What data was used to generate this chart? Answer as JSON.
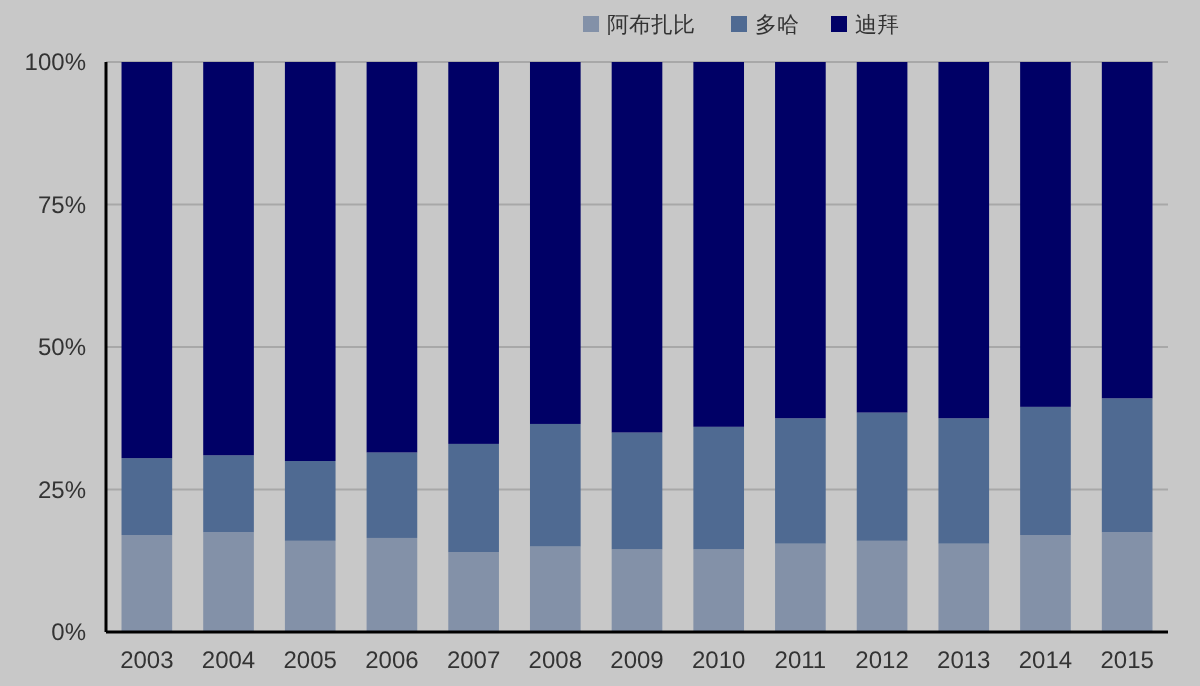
{
  "chart_data": {
    "type": "bar",
    "stacked": true,
    "categories": [
      "2003",
      "2004",
      "2005",
      "2006",
      "2007",
      "2008",
      "2009",
      "2010",
      "2011",
      "2012",
      "2013",
      "2014",
      "2015"
    ],
    "series": [
      {
        "name": "阿布扎比",
        "color": "#8391a8",
        "values": [
          17,
          17.5,
          16,
          16.5,
          14,
          15,
          14.5,
          14.5,
          15.5,
          16,
          15.5,
          17,
          17.5
        ]
      },
      {
        "name": "多哈",
        "color": "#4f6a92",
        "values": [
          13.5,
          13.5,
          14,
          15,
          19,
          21.5,
          20.5,
          21.5,
          22,
          22.5,
          22,
          22.5,
          23.5
        ]
      },
      {
        "name": "迪拜",
        "color": "#000066",
        "values": [
          69.5,
          69,
          70,
          68.5,
          67,
          63.5,
          65,
          64,
          62.5,
          61.5,
          62.5,
          60.5,
          59
        ]
      }
    ],
    "ylim": [
      0,
      100
    ],
    "yticks": [
      {
        "value": 0,
        "label": "0%"
      },
      {
        "value": 25,
        "label": "25%"
      },
      {
        "value": 50,
        "label": "50%"
      },
      {
        "value": 75,
        "label": "75%"
      },
      {
        "value": 100,
        "label": "100%"
      }
    ],
    "grid": "y",
    "legend": "top"
  }
}
